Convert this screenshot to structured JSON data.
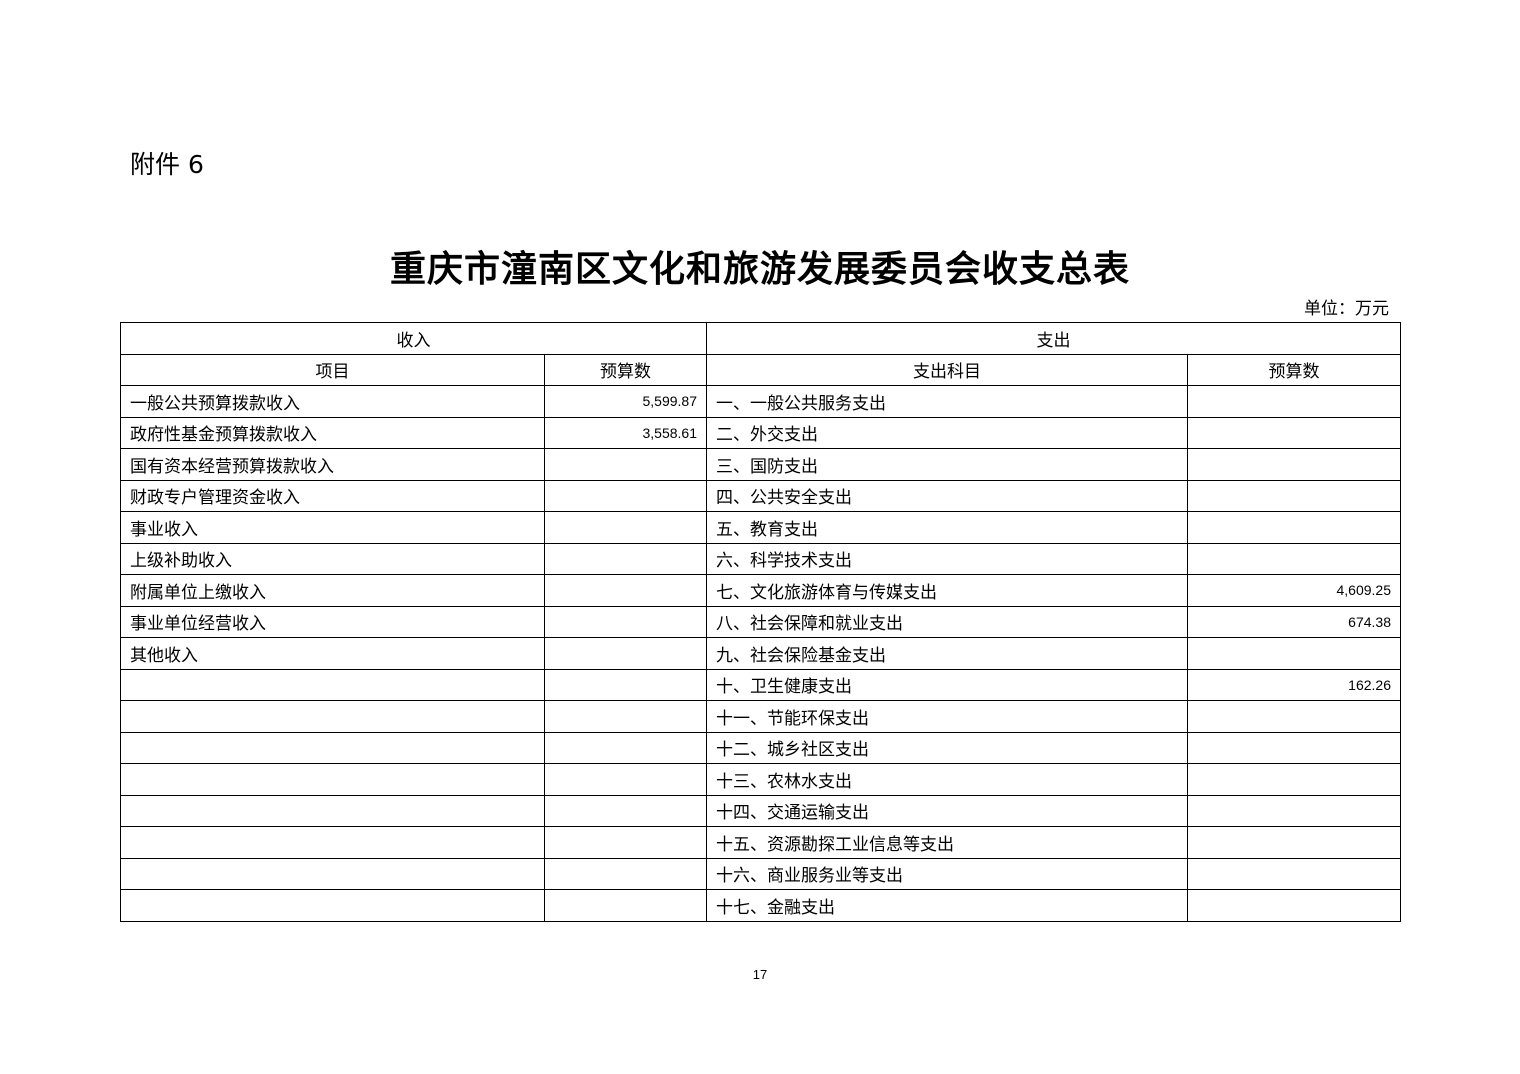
{
  "attachment": "附件 6",
  "title": "重庆市潼南区文化和旅游发展委员会收支总表",
  "unit": "单位：万元",
  "headers": {
    "income": "收入",
    "expense": "支出",
    "income_item": "项目",
    "income_budget": "预算数",
    "expense_item": "支出科目",
    "expense_budget": "预算数"
  },
  "rows": [
    {
      "income_item": "一般公共预算拨款收入",
      "income_budget": "5,599.87",
      "expense_item": "一、一般公共服务支出",
      "expense_budget": ""
    },
    {
      "income_item": "政府性基金预算拨款收入",
      "income_budget": "3,558.61",
      "expense_item": "二、外交支出",
      "expense_budget": ""
    },
    {
      "income_item": "国有资本经营预算拨款收入",
      "income_budget": "",
      "expense_item": "三、国防支出",
      "expense_budget": ""
    },
    {
      "income_item": "财政专户管理资金收入",
      "income_budget": "",
      "expense_item": "四、公共安全支出",
      "expense_budget": ""
    },
    {
      "income_item": "事业收入",
      "income_budget": "",
      "expense_item": "五、教育支出",
      "expense_budget": ""
    },
    {
      "income_item": "上级补助收入",
      "income_budget": "",
      "expense_item": "六、科学技术支出",
      "expense_budget": ""
    },
    {
      "income_item": "附属单位上缴收入",
      "income_budget": "",
      "expense_item": "七、文化旅游体育与传媒支出",
      "expense_budget": "4,609.25"
    },
    {
      "income_item": "事业单位经营收入",
      "income_budget": "",
      "expense_item": "八、社会保障和就业支出",
      "expense_budget": "674.38"
    },
    {
      "income_item": "其他收入",
      "income_budget": "",
      "expense_item": "九、社会保险基金支出",
      "expense_budget": ""
    },
    {
      "income_item": "",
      "income_budget": "",
      "expense_item": "十、卫生健康支出",
      "expense_budget": "162.26"
    },
    {
      "income_item": "",
      "income_budget": "",
      "expense_item": "十一、节能环保支出",
      "expense_budget": ""
    },
    {
      "income_item": "",
      "income_budget": "",
      "expense_item": "十二、城乡社区支出",
      "expense_budget": ""
    },
    {
      "income_item": "",
      "income_budget": "",
      "expense_item": "十三、农林水支出",
      "expense_budget": ""
    },
    {
      "income_item": "",
      "income_budget": "",
      "expense_item": "十四、交通运输支出",
      "expense_budget": ""
    },
    {
      "income_item": "",
      "income_budget": "",
      "expense_item": "十五、资源勘探工业信息等支出",
      "expense_budget": ""
    },
    {
      "income_item": "",
      "income_budget": "",
      "expense_item": "十六、商业服务业等支出",
      "expense_budget": ""
    },
    {
      "income_item": "",
      "income_budget": "",
      "expense_item": "十七、金融支出",
      "expense_budget": ""
    }
  ],
  "page_number": "17"
}
